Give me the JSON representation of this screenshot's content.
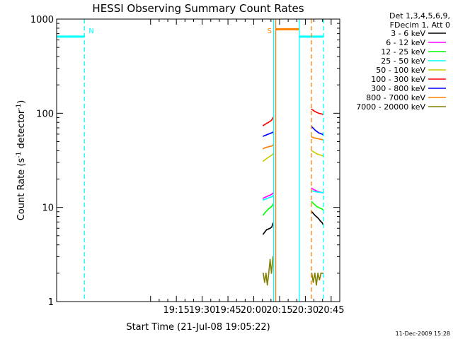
{
  "chart_data": {
    "type": "line",
    "title": "HESSI Observing Summary Count Rates",
    "xlabel": "Start Time (21-Jul-08 19:05:22)",
    "ylabel_main": "Count Rate (s",
    "ylabel_sup1": "-1",
    "ylabel_mid": " detector",
    "ylabel_sup2": "-1",
    "ylabel_end": ")",
    "yscale": "log",
    "ylim": [
      1,
      1000
    ],
    "xlim_minutes": [
      1085.37,
      1250
    ],
    "x_ticks": [
      {
        "label": "19:15",
        "minutes": 1155
      },
      {
        "label": "19:30",
        "minutes": 1170
      },
      {
        "label": "19:45",
        "minutes": 1185
      },
      {
        "label": "20:00",
        "minutes": 1200
      },
      {
        "label": "20:15",
        "minutes": 1215
      },
      {
        "label": "20:30",
        "minutes": 1230
      },
      {
        "label": "20:45",
        "minutes": 1245
      }
    ],
    "y_ticks": [
      {
        "label": "1",
        "value": 1
      },
      {
        "label": "10",
        "value": 10
      },
      {
        "label": "100",
        "value": 100
      },
      {
        "label": "1000",
        "value": 1000
      }
    ],
    "legend_header": [
      "Det 1,3,4,5,6,9,",
      "FDecim 1, Att 0"
    ],
    "legend_position": "right",
    "series": [
      {
        "name": "3 - 6 keV",
        "color": "#000000",
        "segments": [
          {
            "x": [
              1205.5,
              1206.5,
              1207.5,
              1208.5,
              1209.5,
              1210.5,
              1211.2
            ],
            "y": [
              5.2,
              5.5,
              5.8,
              5.9,
              6.0,
              6.2,
              6.8
            ]
          },
          {
            "x": [
              1233.7,
              1234.7,
              1235.7,
              1236.7,
              1237.7,
              1238.7,
              1239.7,
              1240.3
            ],
            "y": [
              9.0,
              8.6,
              8.2,
              7.9,
              7.6,
              7.2,
              6.9,
              6.6
            ]
          }
        ]
      },
      {
        "name": "6 - 12 keV",
        "color": "#ff00ff",
        "segments": [
          {
            "x": [
              1205.5,
              1206.5,
              1207.5,
              1208.5,
              1209.5,
              1210.5,
              1211.2
            ],
            "y": [
              12.5,
              12.8,
              13.0,
              13.3,
              13.5,
              13.8,
              14.2
            ]
          },
          {
            "x": [
              1233.7,
              1234.7,
              1235.7,
              1236.7,
              1237.7,
              1238.7,
              1239.7,
              1240.3
            ],
            "y": [
              16.0,
              15.5,
              15.2,
              14.9,
              14.7,
              14.5,
              14.4,
              14.2
            ]
          }
        ]
      },
      {
        "name": "12 - 25 keV",
        "color": "#00ff00",
        "segments": [
          {
            "x": [
              1205.5,
              1206.5,
              1207.5,
              1208.5,
              1209.5,
              1210.5,
              1211.2
            ],
            "y": [
              8.3,
              8.8,
              9.2,
              9.6,
              9.9,
              10.3,
              10.8
            ]
          },
          {
            "x": [
              1233.7,
              1234.7,
              1235.7,
              1236.7,
              1237.7,
              1238.7,
              1239.7,
              1240.3
            ],
            "y": [
              11.5,
              11.0,
              10.6,
              10.2,
              10.0,
              9.8,
              9.6,
              9.4
            ]
          }
        ]
      },
      {
        "name": "25 - 50 keV",
        "color": "#00ffff",
        "segments": [
          {
            "x": [
              1085.6,
              1101.5
            ],
            "y": [
              650,
              650
            ]
          },
          {
            "x": [
              1205.5,
              1206.5,
              1207.5,
              1208.5,
              1209.5,
              1210.5,
              1211.2
            ],
            "y": [
              12.0,
              12.2,
              12.4,
              12.6,
              12.8,
              13.0,
              13.3
            ]
          },
          {
            "x": [
              1226.5,
              1240.5
            ],
            "y": [
              650,
              650
            ]
          },
          {
            "x": [
              1233.7,
              1234.7,
              1235.7,
              1236.7,
              1237.7,
              1238.7,
              1239.7,
              1240.3
            ],
            "y": [
              15.0,
              14.8,
              14.7,
              14.6,
              14.5,
              14.4,
              14.4,
              14.3
            ]
          }
        ]
      },
      {
        "name": "50 - 100 keV",
        "color": "#cccc00",
        "segments": [
          {
            "x": [
              1205.5,
              1206.5,
              1207.5,
              1208.5,
              1209.5,
              1210.5,
              1211.2
            ],
            "y": [
              31,
              32,
              33,
              34,
              35,
              36,
              37
            ]
          },
          {
            "x": [
              1233.7,
              1234.7,
              1235.7,
              1236.7,
              1237.7,
              1238.7,
              1239.7,
              1240.3
            ],
            "y": [
              40,
              39,
              38,
              37,
              36.5,
              36,
              35.5,
              35
            ]
          }
        ]
      },
      {
        "name": "100 - 300 keV",
        "color": "#ff0000",
        "segments": [
          {
            "x": [
              1205.5,
              1206.5,
              1207.5,
              1208.5,
              1209.5,
              1210.5,
              1211.2
            ],
            "y": [
              74,
              76,
              78,
              80,
              82,
              85,
              90
            ]
          },
          {
            "x": [
              1233.7,
              1234.7,
              1235.7,
              1236.7,
              1237.7,
              1238.7,
              1239.7,
              1240.3
            ],
            "y": [
              110,
              107,
              104,
              102,
              100,
              99,
              98,
              97
            ]
          }
        ]
      },
      {
        "name": "300 - 800 keV",
        "color": "#0000ff",
        "segments": [
          {
            "x": [
              1205.5,
              1206.5,
              1207.5,
              1208.5,
              1209.5,
              1210.5,
              1211.2
            ],
            "y": [
              57,
              58,
              59,
              60,
              61,
              62,
              63
            ]
          },
          {
            "x": [
              1233.7,
              1234.7,
              1235.7,
              1236.7,
              1237.7,
              1238.7,
              1239.7,
              1240.3
            ],
            "y": [
              72,
              69,
              66,
              64,
              62,
              61,
              60,
              59
            ]
          }
        ]
      },
      {
        "name": "800 - 7000 keV",
        "color": "#ff8000",
        "segments": [
          {
            "x": [
              1205.5,
              1206.5,
              1207.5,
              1208.5,
              1209.5,
              1210.5,
              1211.2
            ],
            "y": [
              42,
              43,
              43.5,
              44,
              44.5,
              45,
              46
            ]
          },
          {
            "x": [
              1212.8,
              1226.2
            ],
            "y": [
              780,
              780
            ]
          },
          {
            "x": [
              1233.7,
              1234.7,
              1235.7,
              1236.7,
              1237.7,
              1238.7,
              1239.7,
              1240.3
            ],
            "y": [
              56,
              55,
              54.5,
              54,
              53.5,
              53,
              52.5,
              52
            ]
          }
        ]
      },
      {
        "name": "7000 - 20000 keV",
        "color": "#808000",
        "segments": [
          {
            "x": [
              1205.5,
              1206.3,
              1207.1,
              1207.9,
              1208.7,
              1209.5,
              1210.3,
              1211.2
            ],
            "y": [
              2,
              1.6,
              2,
              1.5,
              2,
              2.8,
              2,
              3
            ]
          },
          {
            "x": [
              1233.7,
              1234.6,
              1235.5,
              1236.4,
              1237.3,
              1238.2,
              1239.1,
              1240.3
            ],
            "y": [
              2,
              1.6,
              2,
              1.5,
              2,
              1.7,
              2,
              2
            ]
          }
        ]
      }
    ],
    "markers": [
      {
        "label": "N",
        "minutes": 1101.5,
        "color": "#00ffff",
        "style": "dashed",
        "label_color": "#00ffff"
      },
      {
        "minutes": 1211.5,
        "color": "#00ffff",
        "style": "solid"
      },
      {
        "label": "S",
        "minutes": 1212.8,
        "color": "#ff8000",
        "style": "solid",
        "label_color": "#ff8000"
      },
      {
        "minutes": 1226.5,
        "color": "#00ffff",
        "style": "solid"
      },
      {
        "minutes": 1233.5,
        "color": "#ff8000",
        "style": "dashed"
      },
      {
        "minutes": 1240.5,
        "color": "#00ffff",
        "style": "dashed"
      }
    ],
    "grid": false
  },
  "footer_timestamp": "11-Dec-2009 15:28"
}
